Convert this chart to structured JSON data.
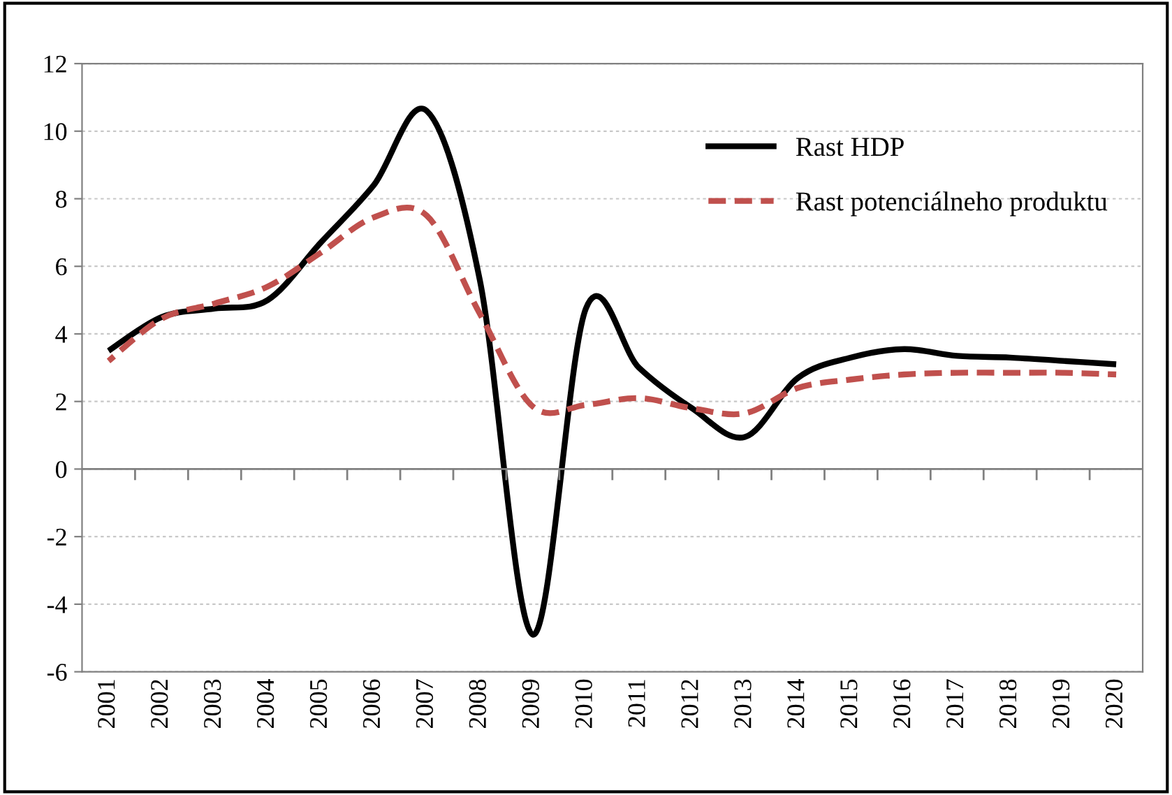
{
  "chart_data": {
    "type": "line",
    "categories": [
      "2001",
      "2002",
      "2003",
      "2004",
      "2005",
      "2006",
      "2007",
      "2008",
      "2009",
      "2010",
      "2011",
      "2012",
      "2013",
      "2014",
      "2015",
      "2016",
      "2017",
      "2018",
      "2019",
      "2020"
    ],
    "series": [
      {
        "name": "Rast HDP",
        "color": "#000000",
        "line_style": "solid",
        "values": [
          3.5,
          4.5,
          4.75,
          5.0,
          6.7,
          8.4,
          10.6,
          5.6,
          -4.9,
          4.75,
          3.0,
          1.8,
          0.95,
          2.7,
          3.3,
          3.55,
          3.35,
          3.3,
          3.2,
          3.1
        ]
      },
      {
        "name": "Rast potenciálneho produktu",
        "color": "#c0504d",
        "line_style": "dashed",
        "values": [
          3.2,
          4.45,
          4.9,
          5.4,
          6.4,
          7.45,
          7.5,
          4.6,
          1.85,
          1.9,
          2.1,
          1.8,
          1.65,
          2.4,
          2.65,
          2.8,
          2.85,
          2.85,
          2.85,
          2.8
        ]
      }
    ],
    "ylim": [
      -6,
      12
    ],
    "yticks": [
      -6,
      -4,
      -2,
      0,
      2,
      4,
      6,
      8,
      10,
      12
    ],
    "grid": "y",
    "legend": "top right",
    "marker": "none"
  }
}
